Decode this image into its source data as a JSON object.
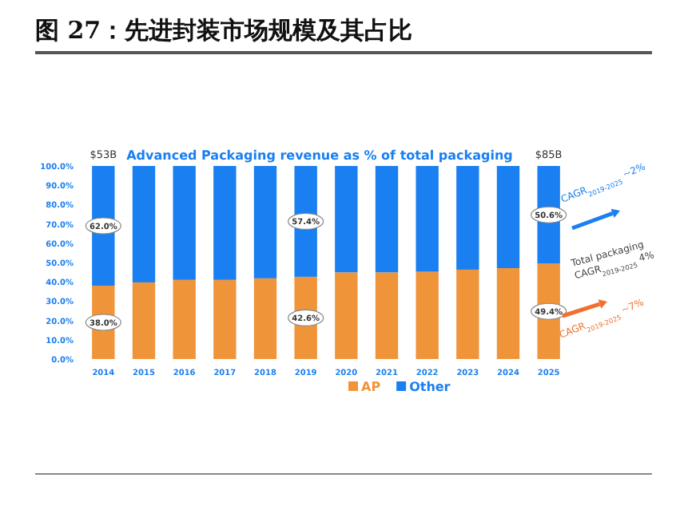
{
  "chart_data": {
    "type": "bar",
    "stacked": true,
    "title": "图 27：先进封装市场规模及其占比",
    "subtitle": "Advanced Packaging revenue as % of total packaging",
    "categories": [
      "2014",
      "2015",
      "2016",
      "2017",
      "2018",
      "2019",
      "2020",
      "2021",
      "2022",
      "2023",
      "2024",
      "2025"
    ],
    "series": [
      {
        "name": "AP",
        "color": "#f0943a",
        "values": [
          38.0,
          39.7,
          41.0,
          41.0,
          41.8,
          42.6,
          44.9,
          44.9,
          45.2,
          46.3,
          47.1,
          49.4
        ],
        "value_labels": [
          "38.0%",
          null,
          null,
          null,
          null,
          "42.6%",
          null,
          null,
          null,
          null,
          null,
          "49.4%"
        ]
      },
      {
        "name": "Other",
        "color": "#1a7ff0",
        "values": [
          62.0,
          60.3,
          59.0,
          59.0,
          58.2,
          57.4,
          55.1,
          55.1,
          54.8,
          53.7,
          52.9,
          50.6
        ],
        "value_labels": [
          "62.0%",
          null,
          null,
          null,
          null,
          "57.4%",
          null,
          null,
          null,
          null,
          null,
          "50.6%"
        ]
      }
    ],
    "ylim": [
      0,
      100
    ],
    "yticks": [
      {
        "value": 0,
        "label": "0.0%"
      },
      {
        "value": 10,
        "label": "10.0%"
      },
      {
        "value": 20,
        "label": "20.0%"
      },
      {
        "value": 30,
        "label": "30.0%"
      },
      {
        "value": 40,
        "label": "40.0%"
      },
      {
        "value": 50,
        "label": "50.0%"
      },
      {
        "value": 60,
        "label": "60.0%"
      },
      {
        "value": 70,
        "label": "70.0%"
      },
      {
        "value": 80,
        "label": "80.0%"
      },
      {
        "value": 90,
        "label": "90.0%"
      },
      {
        "value": 100,
        "label": "100.0%"
      }
    ],
    "grid": false,
    "legend": "bottom",
    "annotations": [
      {
        "text": "$53B",
        "x": "2014",
        "y": 100
      },
      {
        "text": "$85B",
        "x": "2025",
        "y": 100
      },
      "CAGR$_{2019-2025}$ ~2%",
      "Total packaging CAGR$_{2019-2025}$ 4%",
      "CAGR$_{2019-2025}$ ~7%"
    ]
  }
}
